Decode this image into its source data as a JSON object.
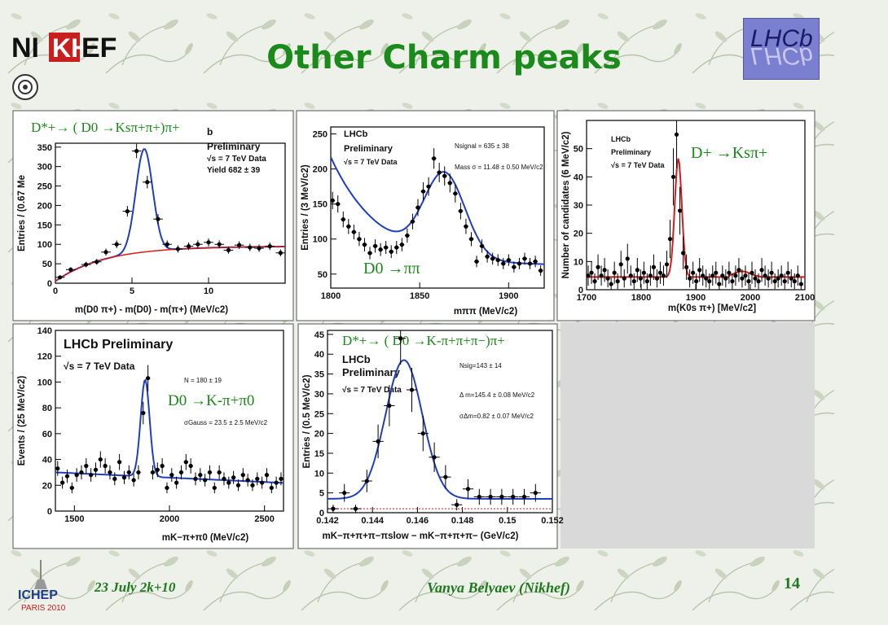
{
  "slide": {
    "title": "Other Charm peaks",
    "footer_date": "23 July 2k+10",
    "footer_author": "Vanya Belyaev (Nikhef)",
    "page_number": "14",
    "logos": {
      "nikhef_text": "NIKHEF",
      "lhcb_text": "LHCb",
      "ichep_text": "ICHEP",
      "ichep_sub": "PARIS 2010"
    }
  },
  "colors": {
    "title": "#1a8a1a",
    "footer": "#1c7a1c",
    "fit_blue": "#1f3fbf",
    "fit_red": "#d41a1a",
    "marker": "#000000"
  },
  "plots": [
    {
      "id": "dstar-kspipi",
      "decay_label": "D*+→ ( D0 →Ksπ+π+)π+",
      "header_lines": [
        "b",
        "Preliminary",
        "√s = 7 TeV Data",
        "Yield   682 ± 39"
      ],
      "chart_data": {
        "type": "scatter",
        "xlabel": "m(D0 π+) - m(D0) - m(π+)  (MeV/c2)",
        "ylabel": "Entries / (0.67 Me",
        "xlim": [
          0,
          15
        ],
        "ylim": [
          0,
          360
        ],
        "xticks": [
          0,
          5,
          10
        ],
        "yticks": [
          0,
          50,
          100,
          150,
          200,
          250,
          300,
          350
        ],
        "points": [
          [
            0.3,
            15
          ],
          [
            1.0,
            35
          ],
          [
            2.0,
            48
          ],
          [
            2.7,
            55
          ],
          [
            3.3,
            80
          ],
          [
            4.0,
            100
          ],
          [
            4.7,
            185
          ],
          [
            5.3,
            340
          ],
          [
            6.0,
            260
          ],
          [
            6.7,
            165
          ],
          [
            7.3,
            100
          ],
          [
            8.0,
            88
          ],
          [
            8.7,
            95
          ],
          [
            9.3,
            100
          ],
          [
            10.0,
            105
          ],
          [
            10.7,
            100
          ],
          [
            11.3,
            85
          ],
          [
            12.0,
            98
          ],
          [
            12.7,
            92
          ],
          [
            13.3,
            90
          ],
          [
            14.0,
            95
          ],
          [
            14.7,
            78
          ]
        ],
        "fit_total_color": "blue",
        "fit_bkg_color": "red"
      }
    },
    {
      "id": "d0-pipi",
      "decay_label": "D0 →ππ",
      "header_lines": [
        "LHCb",
        "Preliminary",
        "√s = 7 TeV Data"
      ],
      "stats": [
        "Nsignal = 635 ± 38",
        "Mass σ = 11.48 ± 0.50 MeV/c2"
      ],
      "chart_data": {
        "type": "scatter",
        "xlabel": "mππ (MeV/c2)",
        "ylabel": "Entries / (3 MeV/c2)",
        "xlim": [
          1800,
          1920
        ],
        "ylim": [
          30,
          260
        ],
        "xticks": [
          1800,
          1850,
          1900
        ],
        "yticks": [
          50,
          100,
          150,
          200,
          250
        ],
        "points": [
          [
            1801,
            155
          ],
          [
            1804,
            150
          ],
          [
            1807,
            128
          ],
          [
            1810,
            118
          ],
          [
            1813,
            110
          ],
          [
            1816,
            100
          ],
          [
            1819,
            92
          ],
          [
            1822,
            80
          ],
          [
            1825,
            90
          ],
          [
            1828,
            85
          ],
          [
            1831,
            88
          ],
          [
            1834,
            82
          ],
          [
            1837,
            88
          ],
          [
            1840,
            92
          ],
          [
            1843,
            105
          ],
          [
            1846,
            125
          ],
          [
            1849,
            145
          ],
          [
            1852,
            168
          ],
          [
            1855,
            175
          ],
          [
            1858,
            215
          ],
          [
            1861,
            195
          ],
          [
            1864,
            190
          ],
          [
            1867,
            180
          ],
          [
            1870,
            165
          ],
          [
            1873,
            140
          ],
          [
            1876,
            118
          ],
          [
            1879,
            100
          ],
          [
            1882,
            68
          ],
          [
            1885,
            90
          ],
          [
            1888,
            75
          ],
          [
            1891,
            72
          ],
          [
            1894,
            70
          ],
          [
            1897,
            65
          ],
          [
            1900,
            70
          ],
          [
            1903,
            60
          ],
          [
            1906,
            65
          ],
          [
            1909,
            72
          ],
          [
            1912,
            65
          ],
          [
            1915,
            68
          ],
          [
            1918,
            55
          ]
        ],
        "fit_total_color": "blue",
        "fit_bkg_color": "blue"
      }
    },
    {
      "id": "dplus-kspi",
      "decay_label": "D+ →Ksπ+",
      "header_lines": [
        "LHCb",
        "Preliminary",
        "√s = 7 TeV Data"
      ],
      "chart_data": {
        "type": "scatter",
        "xlabel": "m(K0s π+) [MeV/c2]",
        "ylabel": "Number of candidates (6 MeV/c2)",
        "xlim": [
          1700,
          2100
        ],
        "ylim": [
          0,
          60
        ],
        "xticks": [
          1700,
          1800,
          1900,
          2000,
          2100
        ],
        "yticks": [
          0,
          10,
          20,
          30,
          40,
          50
        ],
        "points": [
          [
            1703,
            5
          ],
          [
            1709,
            6
          ],
          [
            1715,
            3
          ],
          [
            1721,
            8
          ],
          [
            1727,
            5
          ],
          [
            1733,
            7
          ],
          [
            1739,
            4
          ],
          [
            1745,
            2
          ],
          [
            1751,
            6
          ],
          [
            1757,
            3
          ],
          [
            1763,
            9
          ],
          [
            1769,
            4
          ],
          [
            1775,
            11
          ],
          [
            1781,
            5
          ],
          [
            1787,
            3
          ],
          [
            1793,
            7
          ],
          [
            1799,
            4
          ],
          [
            1805,
            6
          ],
          [
            1811,
            3
          ],
          [
            1817,
            5
          ],
          [
            1823,
            8
          ],
          [
            1829,
            4
          ],
          [
            1835,
            6
          ],
          [
            1841,
            5
          ],
          [
            1847,
            9
          ],
          [
            1853,
            18
          ],
          [
            1859,
            40
          ],
          [
            1865,
            55
          ],
          [
            1871,
            28
          ],
          [
            1877,
            13
          ],
          [
            1883,
            8
          ],
          [
            1889,
            4
          ],
          [
            1895,
            6
          ],
          [
            1901,
            3
          ],
          [
            1907,
            7
          ],
          [
            1913,
            5
          ],
          [
            1919,
            4
          ],
          [
            1925,
            3
          ],
          [
            1931,
            5
          ],
          [
            1937,
            6
          ],
          [
            1943,
            2
          ],
          [
            1949,
            5
          ],
          [
            1955,
            4
          ],
          [
            1961,
            6
          ],
          [
            1967,
            3
          ],
          [
            1973,
            5
          ],
          [
            1979,
            7
          ],
          [
            1985,
            4
          ],
          [
            1991,
            5
          ],
          [
            1997,
            3
          ],
          [
            2003,
            6
          ],
          [
            2009,
            4
          ],
          [
            2015,
            3
          ],
          [
            2021,
            7
          ],
          [
            2027,
            5
          ],
          [
            2033,
            4
          ],
          [
            2039,
            6
          ],
          [
            2045,
            3
          ],
          [
            2051,
            4
          ],
          [
            2057,
            5
          ],
          [
            2063,
            3
          ],
          [
            2069,
            6
          ],
          [
            2075,
            4
          ],
          [
            2081,
            3
          ],
          [
            2087,
            5
          ],
          [
            2093,
            2
          ]
        ],
        "fit_total_color": "red"
      }
    },
    {
      "id": "d0-kpipi0",
      "decay_label": "D0 →K-π+π0",
      "header_lines": [
        "LHCb Preliminary",
        "√s = 7 TeV Data"
      ],
      "stats": [
        "N = 180 ± 19",
        "σGauss = 23.5 ± 2.5 MeV/c2"
      ],
      "chart_data": {
        "type": "scatter",
        "xlabel": "mK−π+π0 (MeV/c2)",
        "ylabel": "Events / (25 MeV/c2)",
        "xlim": [
          1400,
          2600
        ],
        "ylim": [
          0,
          140
        ],
        "xticks": [
          1500,
          2000,
          2500
        ],
        "yticks": [
          0,
          20,
          40,
          60,
          80,
          100,
          120,
          140
        ],
        "points": [
          [
            1412,
            33
          ],
          [
            1437,
            22
          ],
          [
            1462,
            27
          ],
          [
            1487,
            18
          ],
          [
            1512,
            28
          ],
          [
            1537,
            30
          ],
          [
            1562,
            35
          ],
          [
            1587,
            28
          ],
          [
            1612,
            32
          ],
          [
            1637,
            40
          ],
          [
            1662,
            35
          ],
          [
            1687,
            30
          ],
          [
            1712,
            25
          ],
          [
            1737,
            38
          ],
          [
            1762,
            26
          ],
          [
            1787,
            30
          ],
          [
            1812,
            24
          ],
          [
            1837,
            30
          ],
          [
            1862,
            76
          ],
          [
            1887,
            103
          ],
          [
            1912,
            30
          ],
          [
            1937,
            32
          ],
          [
            1962,
            35
          ],
          [
            1987,
            18
          ],
          [
            2012,
            28
          ],
          [
            2037,
            22
          ],
          [
            2062,
            30
          ],
          [
            2087,
            38
          ],
          [
            2112,
            35
          ],
          [
            2137,
            25
          ],
          [
            2162,
            28
          ],
          [
            2187,
            24
          ],
          [
            2212,
            30
          ],
          [
            2237,
            18
          ],
          [
            2262,
            30
          ],
          [
            2287,
            25
          ],
          [
            2312,
            22
          ],
          [
            2337,
            26
          ],
          [
            2362,
            20
          ],
          [
            2387,
            28
          ],
          [
            2412,
            24
          ],
          [
            2437,
            20
          ],
          [
            2462,
            25
          ],
          [
            2487,
            22
          ],
          [
            2512,
            28
          ],
          [
            2537,
            18
          ],
          [
            2562,
            22
          ],
          [
            2587,
            25
          ]
        ],
        "fit_total_color": "blue"
      }
    },
    {
      "id": "dstar-k3pi",
      "decay_label": "D*+→ ( D0 →K-π+π+π−)π+",
      "header_lines": [
        "LHCb",
        "Preliminary",
        "√s = 7 TeV Data"
      ],
      "stats": [
        "Nsig=143 ± 14",
        "Δ m=145.4 ± 0.08 MeV/c2",
        "σΔm=0.82 ± 0.07 MeV/c2"
      ],
      "chart_data": {
        "type": "scatter",
        "xlabel": "mK−π+π+π−πslow − mK−π+π+π− (GeV/c2)",
        "ylabel": "Entries / (0.5 MeV/c2)",
        "xlim": [
          0.142,
          0.152
        ],
        "ylim": [
          0,
          46
        ],
        "xticks": [
          0.142,
          0.144,
          0.146,
          0.148,
          0.15,
          0.152
        ],
        "yticks": [
          0,
          5,
          10,
          15,
          20,
          25,
          30,
          35,
          40,
          45
        ],
        "points": [
          [
            0.14225,
            1
          ],
          [
            0.14275,
            5
          ],
          [
            0.14325,
            1
          ],
          [
            0.14375,
            8
          ],
          [
            0.14425,
            18
          ],
          [
            0.14475,
            27
          ],
          [
            0.14525,
            44
          ],
          [
            0.14575,
            31
          ],
          [
            0.14625,
            20
          ],
          [
            0.14675,
            14
          ],
          [
            0.14725,
            9
          ],
          [
            0.14775,
            2
          ],
          [
            0.14825,
            6
          ],
          [
            0.14875,
            4
          ],
          [
            0.14925,
            4
          ],
          [
            0.14975,
            4
          ],
          [
            0.15025,
            4
          ],
          [
            0.15075,
            4
          ],
          [
            0.15125,
            5
          ]
        ],
        "fit_total_color": "blue",
        "fit_bkg_color": "red"
      }
    }
  ]
}
